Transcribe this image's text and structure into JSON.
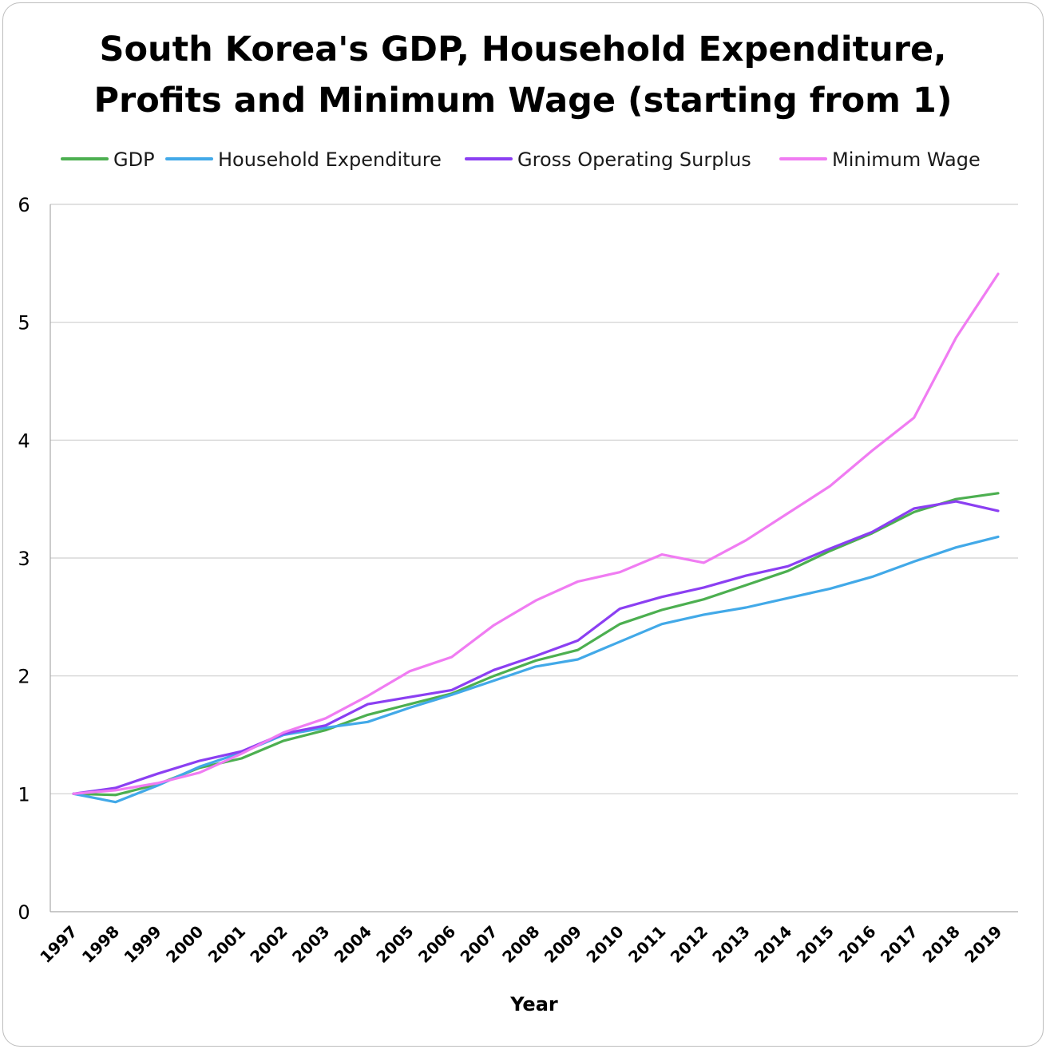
{
  "chart_data": {
    "type": "line",
    "title": "South Korea's GDP, Household Expenditure,\nProfits and Minimum Wage (starting from 1)",
    "xlabel": "Year",
    "ylabel": "",
    "ylim": [
      0,
      6
    ],
    "yticks": [
      "0",
      "1",
      "2",
      "3",
      "4",
      "5",
      "6"
    ],
    "grid": true,
    "legend_position": "top",
    "categories": [
      "1997",
      "1998",
      "1999",
      "2000",
      "2001",
      "2002",
      "2003",
      "2004",
      "2005",
      "2006",
      "2007",
      "2008",
      "2009",
      "2010",
      "2011",
      "2012",
      "2013",
      "2014",
      "2015",
      "2016",
      "2017",
      "2018",
      "2019"
    ],
    "series": [
      {
        "name": "GDP",
        "color": "#4caf50",
        "values": [
          1.0,
          0.99,
          1.08,
          1.22,
          1.3,
          1.45,
          1.54,
          1.67,
          1.76,
          1.85,
          2.0,
          2.13,
          2.22,
          2.44,
          2.56,
          2.65,
          2.77,
          2.89,
          3.06,
          3.21,
          3.39,
          3.5,
          3.55
        ]
      },
      {
        "name": "Household Expenditure",
        "color": "#42a9e8",
        "values": [
          1.0,
          0.93,
          1.07,
          1.23,
          1.35,
          1.5,
          1.56,
          1.61,
          1.73,
          1.84,
          1.96,
          2.08,
          2.14,
          2.29,
          2.44,
          2.52,
          2.58,
          2.66,
          2.74,
          2.84,
          2.97,
          3.09,
          3.18
        ]
      },
      {
        "name": "Gross Operating Surplus",
        "color": "#8b3ff2",
        "values": [
          1.0,
          1.05,
          1.17,
          1.28,
          1.36,
          1.51,
          1.58,
          1.76,
          1.82,
          1.88,
          2.05,
          2.17,
          2.3,
          2.57,
          2.67,
          2.75,
          2.85,
          2.93,
          3.08,
          3.22,
          3.42,
          3.48,
          3.4
        ]
      },
      {
        "name": "Minimum Wage",
        "color": "#f07cf2",
        "values": [
          1.0,
          1.03,
          1.09,
          1.18,
          1.34,
          1.52,
          1.64,
          1.83,
          2.04,
          2.16,
          2.43,
          2.64,
          2.8,
          2.88,
          3.03,
          2.96,
          3.15,
          3.38,
          3.61,
          3.91,
          4.19,
          4.87,
          5.41
        ]
      }
    ]
  }
}
